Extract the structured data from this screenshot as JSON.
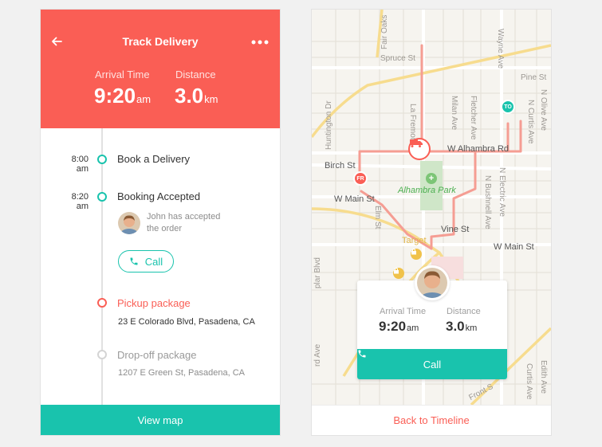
{
  "colors": {
    "brand_red": "#fa5e55",
    "brand_teal": "#19c3ad",
    "map_background": "#f6f4ef"
  },
  "tracking": {
    "header": {
      "back_icon": "arrow-left-icon",
      "title": "Track Delivery",
      "more_icon": "more-dots-icon",
      "arrival_label": "Arrival Time",
      "arrival_value": "9:20",
      "arrival_unit": "am",
      "distance_label": "Distance",
      "distance_value": "3.0",
      "distance_unit": "km"
    },
    "timeline": [
      {
        "time": "8:00",
        "ampm": "am",
        "title": "Book a Delivery"
      },
      {
        "time": "8:20",
        "ampm": "am",
        "title": "Booking Accepted",
        "note": "John has accepted the order",
        "call_label": "Call",
        "call_icon": "phone-icon"
      },
      {
        "title": "Pickup package",
        "address": "23 E Colorado Blvd, Pasadena, CA"
      },
      {
        "title": "Drop-off package",
        "address": "1207 E Green St, Pasadena, CA"
      }
    ],
    "view_map_label": "View map"
  },
  "map": {
    "streets": {
      "fair_oaks": "Fair Oaks",
      "spruce": "Spruce St",
      "wayne": "Wayne Ave",
      "pine": "Pine St",
      "huntington": "Huntington Dr",
      "la_fremont": "La Fremont",
      "milan": "Milan Ave",
      "fletcher": "Fletcher Ave",
      "olive": "N Olive Ave",
      "curtis": "N Curtis Ave",
      "w_alhambra": "W Alhambra Rd",
      "birch": "Birch St",
      "electric": "N Electric Ave",
      "bushnell": "N Bushnell Ave",
      "w_main_left": "W Main St",
      "w_main_right": "W Main St",
      "elm": "Elm St",
      "vine": "Vine St",
      "plar": "plar Blvd",
      "rd_ave": "rd Ave",
      "curtis_lower": "Curtis Ave",
      "edith": "Edith Ave",
      "front": "Front S"
    },
    "places": {
      "park": "Alhambra Park",
      "target": "Target"
    },
    "pins": {
      "start": "FR",
      "end": "TO",
      "truck_icon": "truck-icon",
      "park_icon": "park-icon",
      "store_icon": "shopping-bag-icon"
    },
    "card": {
      "arrival_label": "Arrival Time",
      "arrival_value": "9:20",
      "arrival_unit": "am",
      "distance_label": "Distance",
      "distance_value": "3.0",
      "distance_unit": "km",
      "call_label": "Call",
      "call_icon": "phone-icon"
    },
    "back_label": "Back to Timeline"
  }
}
